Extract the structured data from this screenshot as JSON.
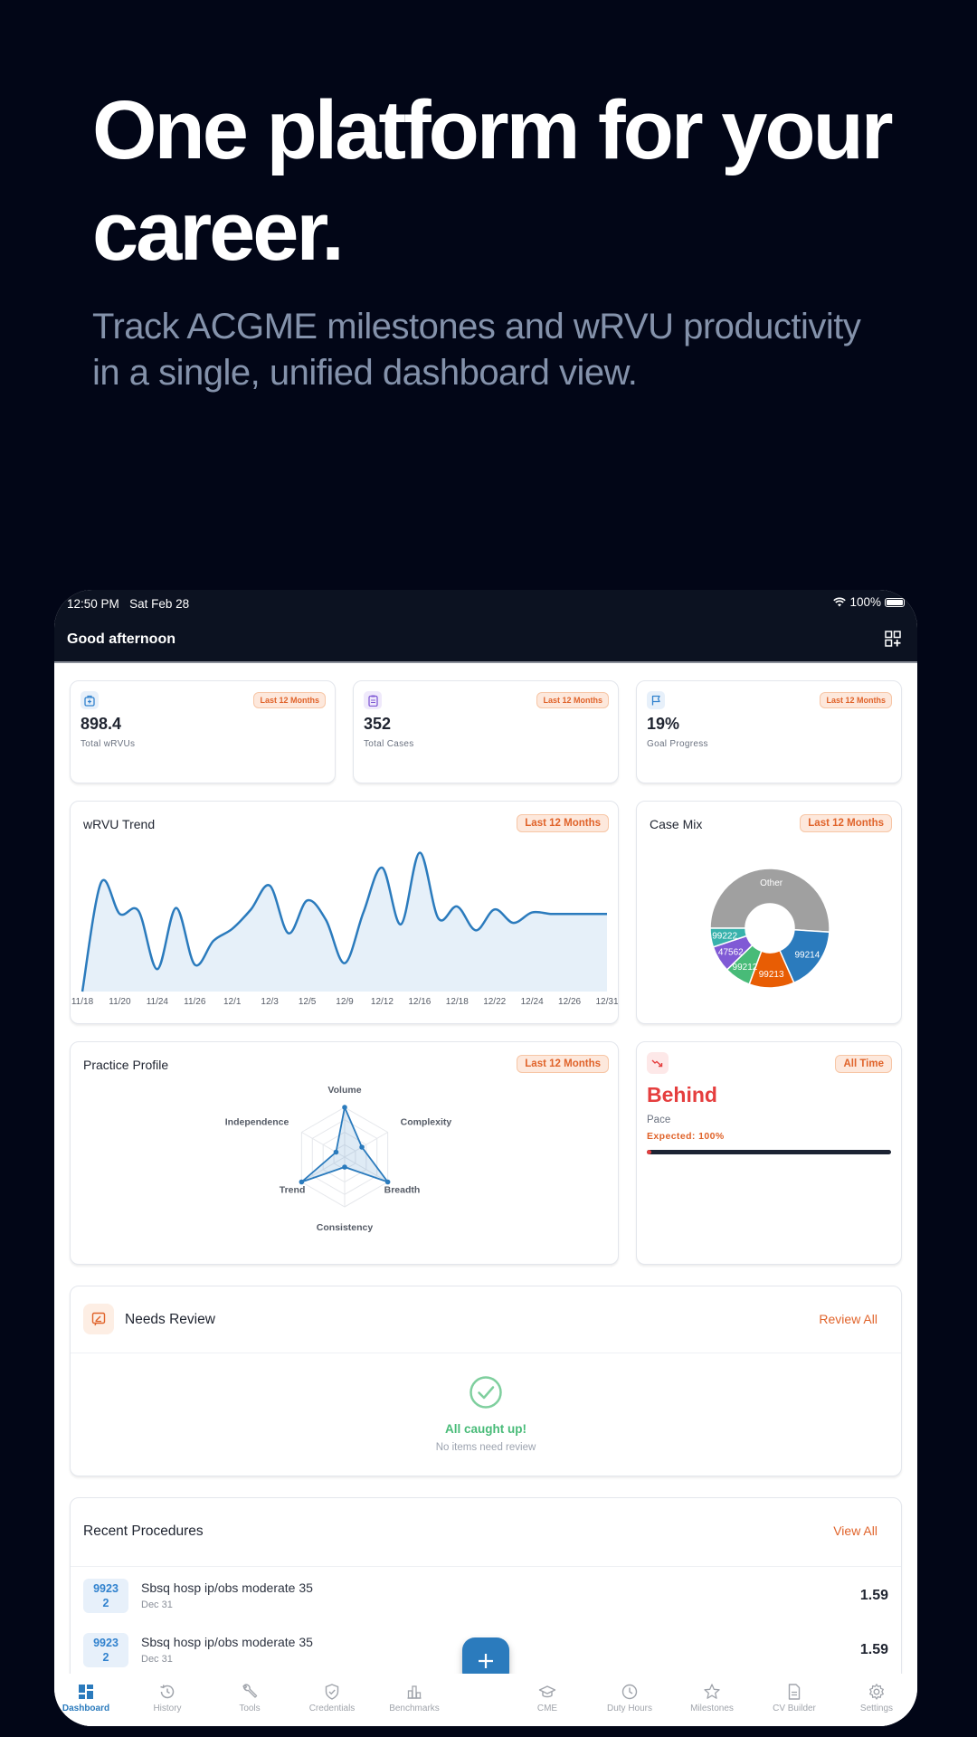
{
  "hero": {
    "title": "One platform for your career.",
    "subtitle": "Track ACGME milestones and wRVU productivity in a single, unified dashboard view."
  },
  "status_bar": {
    "time": "12:50 PM",
    "date": "Sat Feb 28",
    "battery": "100%",
    "wifi_icon": "wifi-icon",
    "battery_icon": "battery-icon"
  },
  "header": {
    "greeting": "Good afternoon",
    "action_icon": "customize-widgets-icon"
  },
  "stats": [
    {
      "icon": "medical-bag-icon",
      "icon_color": "#3182ce",
      "icon_bg": "#e7f0fa",
      "badge": "Last 12 Months",
      "value": "898.4",
      "label": "Total wRVUs"
    },
    {
      "icon": "clipboard-icon",
      "icon_color": "#805ad5",
      "icon_bg": "#efe9fb",
      "badge": "Last 12 Months",
      "value": "352",
      "label": "Total Cases"
    },
    {
      "icon": "flag-icon",
      "icon_color": "#3182ce",
      "icon_bg": "#e7f0fa",
      "badge": "Last 12 Months",
      "value": "19%",
      "label": "Goal Progress"
    }
  ],
  "trend_card": {
    "title": "wRVU Trend",
    "badge": "Last 12 Months"
  },
  "case_mix_card": {
    "title": "Case Mix",
    "badge": "Last 12 Months"
  },
  "profile_card": {
    "title": "Practice Profile",
    "badge": "Last 12 Months"
  },
  "pace_card": {
    "icon": "trending-down-icon",
    "badge": "All Time",
    "status": "Behind",
    "label": "Pace",
    "expected": "Expected: 100%",
    "progress_pct": 2,
    "status_color": "#e53e3e"
  },
  "needs_review": {
    "icon": "review-icon",
    "title": "Needs Review",
    "action": "Review All",
    "empty_icon": "check-circle-icon",
    "empty_title": "All caught up!",
    "empty_subtitle": "No items need review"
  },
  "recent_procedures": {
    "title": "Recent Procedures",
    "action": "View All",
    "items": [
      {
        "code_line1": "9923",
        "code_line2": "2",
        "description": "Sbsq hosp ip/obs moderate 35",
        "date": "Dec 31",
        "value": "1.59"
      },
      {
        "code_line1": "9923",
        "code_line2": "2",
        "description": "Sbsq hosp ip/obs moderate 35",
        "date": "Dec 31",
        "value": "1.59"
      }
    ]
  },
  "fab": {
    "icon": "plus-icon"
  },
  "bottom_nav": [
    {
      "label": "Dashboard",
      "icon": "dashboard-icon",
      "active": true
    },
    {
      "label": "History",
      "icon": "history-icon",
      "active": false
    },
    {
      "label": "Tools",
      "icon": "wrench-icon",
      "active": false
    },
    {
      "label": "Credentials",
      "icon": "shield-check-icon",
      "active": false
    },
    {
      "label": "Benchmarks",
      "icon": "bar-chart-icon",
      "active": false
    },
    {
      "label": "CME",
      "icon": "graduation-cap-icon",
      "active": false
    },
    {
      "label": "Duty Hours",
      "icon": "clock-icon",
      "active": false
    },
    {
      "label": "Milestones",
      "icon": "star-icon",
      "active": false
    },
    {
      "label": "CV Builder",
      "icon": "document-icon",
      "active": false
    },
    {
      "label": "Settings",
      "icon": "gear-icon",
      "active": false
    }
  ],
  "colors": {
    "accent_blue": "#2b7bbd",
    "accent_orange": "#e0632a",
    "danger": "#e53e3e",
    "success": "#48bb78",
    "page_bg": "#020617",
    "header_bg": "#0c1221"
  },
  "chart_data": [
    {
      "type": "area",
      "title": "wRVU Trend",
      "xlabel": "",
      "ylabel": "",
      "categories": [
        "11/18",
        "11/20",
        "11/24",
        "11/26",
        "12/1",
        "12/3",
        "12/5",
        "12/9",
        "12/12",
        "12/16",
        "12/18",
        "12/22",
        "12/24",
        "12/26",
        "12/31"
      ],
      "x_points": [
        0,
        0.5,
        1,
        1.5,
        2,
        2.5,
        3,
        3.5,
        4,
        4.5,
        5,
        5.5,
        6,
        6.5,
        7,
        7.5,
        8,
        8.5,
        9,
        9.5,
        10,
        10.5,
        11,
        11.5,
        12,
        12.5,
        13,
        13.5,
        14
      ],
      "values": [
        0,
        7.3,
        5.2,
        5.4,
        1.5,
        5.6,
        1.8,
        3.4,
        4.2,
        5.5,
        7.1,
        3.9,
        6.1,
        4.8,
        1.9,
        5.3,
        8.3,
        4.5,
        9.3,
        4.9,
        5.7,
        4.1,
        5.5,
        4.6,
        5.3,
        5.2,
        5.2,
        5.2,
        5.2
      ],
      "grid": false,
      "legend": "none",
      "line_color": "#2b7bbd",
      "fill_color": "#e6f0f9"
    },
    {
      "type": "pie",
      "title": "Case Mix",
      "donut": true,
      "labels": [
        "Other",
        "99214",
        "99213",
        "99212",
        "47562",
        "99222"
      ],
      "values": [
        50,
        17,
        12,
        7,
        7,
        5
      ],
      "colors": [
        "#a0a0a0",
        "#2b7bbd",
        "#e85d04",
        "#48bb78",
        "#805ad5",
        "#38b2ac"
      ]
    },
    {
      "type": "radar",
      "title": "Practice Profile",
      "axes": [
        "Volume",
        "Complexity",
        "Breadth",
        "Consistency",
        "Trend",
        "Independence"
      ],
      "values": [
        100,
        40,
        100,
        20,
        100,
        20
      ],
      "range": [
        0,
        100
      ],
      "rings": 4,
      "line_color": "#2b7bbd"
    }
  ]
}
